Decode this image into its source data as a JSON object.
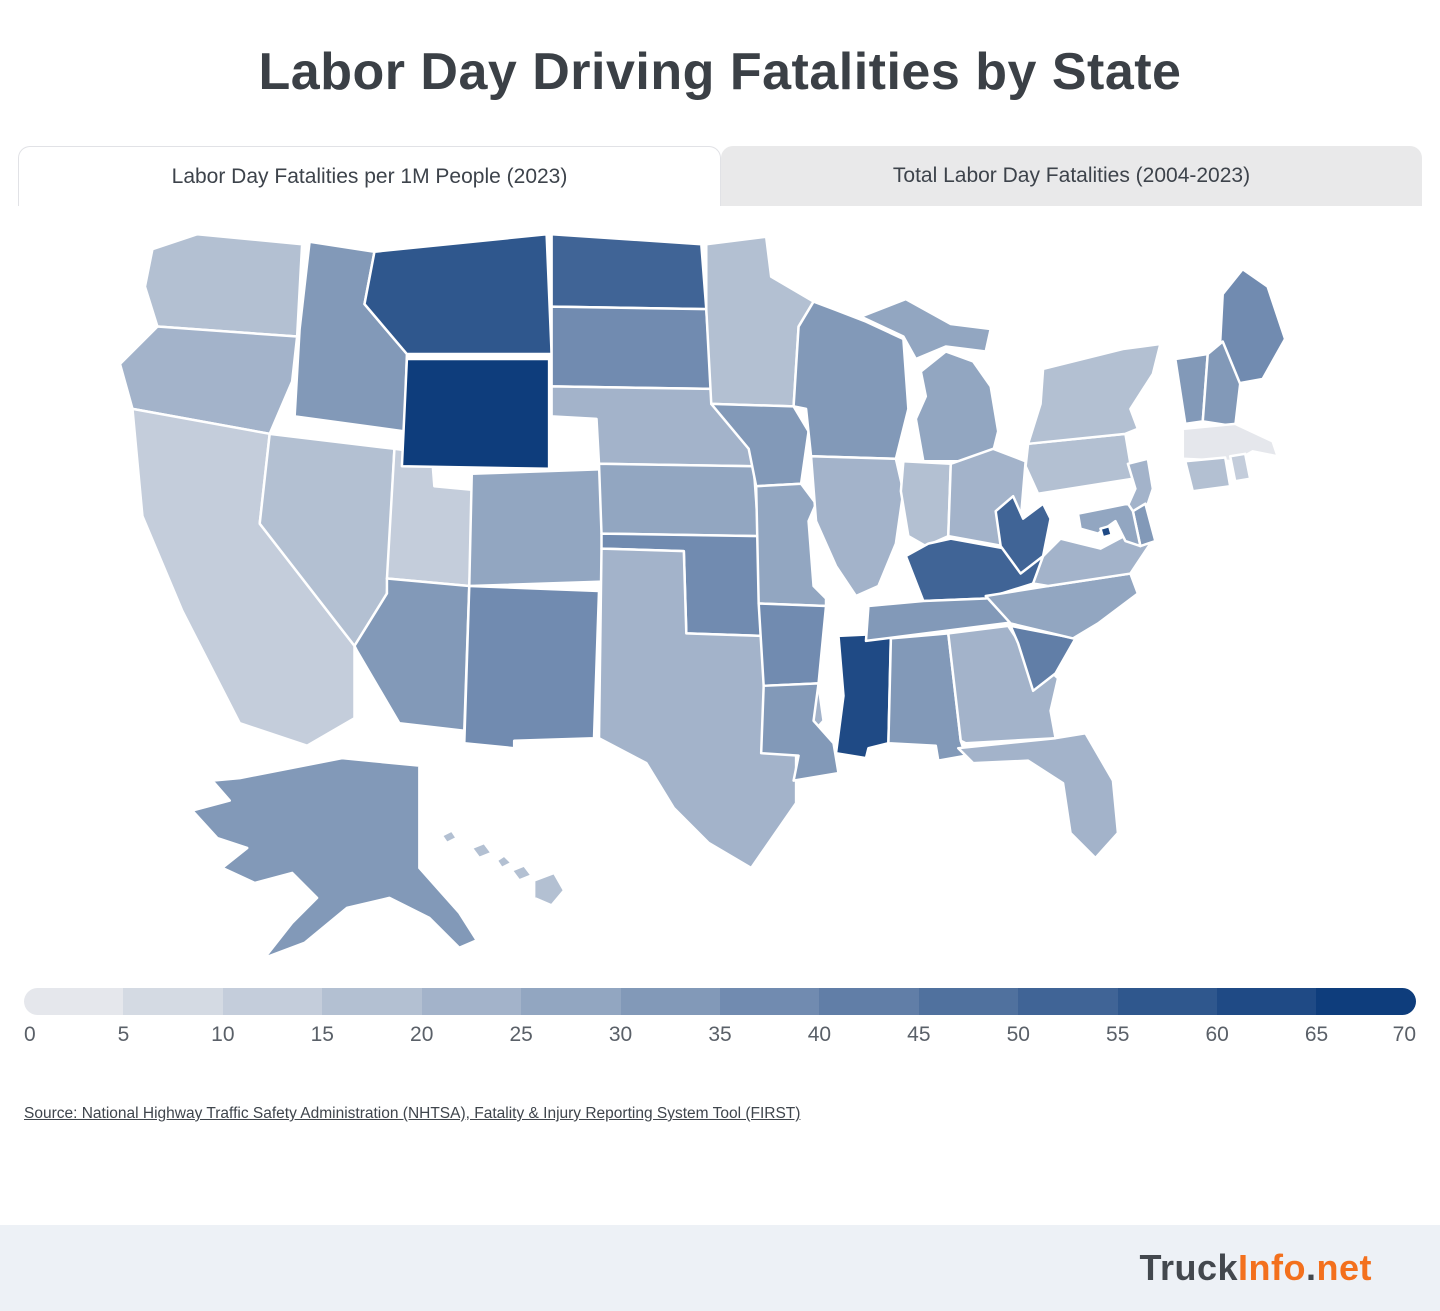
{
  "title": "Labor Day Driving Fatalities by State",
  "tabs": [
    {
      "label": "Labor Day Fatalities per 1M People (2023)",
      "active": true
    },
    {
      "label": "Total Labor Day Fatalities (2004-2023)",
      "active": false
    }
  ],
  "legend": {
    "min": 0,
    "max": 70,
    "step": 5,
    "segments": 14,
    "ticks": [
      "0",
      "5",
      "10",
      "15",
      "20",
      "25",
      "30",
      "35",
      "40",
      "45",
      "50",
      "55",
      "60",
      "65",
      "70"
    ]
  },
  "colorscale": {
    "start": "#e5e7ec",
    "end": "#0e3d7c",
    "steps": 14
  },
  "source": {
    "label": "Source: National Highway Traffic Safety Administration (NHTSA), Fatality & Injury Reporting System Tool (FIRST)"
  },
  "footer": {
    "brand_dark1": "Truck",
    "brand_orange1": "Info",
    "brand_dark2": ".",
    "brand_orange2": "net"
  },
  "chart_data": {
    "type": "choropleth",
    "title": "Labor Day Fatalities per 1M People (2023)",
    "unit": "fatalities per 1M people",
    "region": "United States",
    "value_range": [
      0,
      70
    ],
    "legend_position": "bottom",
    "states": [
      {
        "code": "AL",
        "name": "Alabama",
        "value": 32
      },
      {
        "code": "AK",
        "name": "Alaska",
        "value": 34
      },
      {
        "code": "AZ",
        "name": "Arizona",
        "value": 31
      },
      {
        "code": "AR",
        "name": "Arkansas",
        "value": 36
      },
      {
        "code": "CA",
        "name": "California",
        "value": 14
      },
      {
        "code": "CO",
        "name": "Colorado",
        "value": 25
      },
      {
        "code": "CT",
        "name": "Connecticut",
        "value": 17
      },
      {
        "code": "DE",
        "name": "Delaware",
        "value": 30
      },
      {
        "code": "DC",
        "name": "District of Columbia",
        "value": 60
      },
      {
        "code": "FL",
        "name": "Florida",
        "value": 23
      },
      {
        "code": "GA",
        "name": "Georgia",
        "value": 24
      },
      {
        "code": "HI",
        "name": "Hawaii",
        "value": 18
      },
      {
        "code": "ID",
        "name": "Idaho",
        "value": 33
      },
      {
        "code": "IL",
        "name": "Illinois",
        "value": 24
      },
      {
        "code": "IN",
        "name": "Indiana",
        "value": 18
      },
      {
        "code": "IA",
        "name": "Iowa",
        "value": 33
      },
      {
        "code": "KS",
        "name": "Kansas",
        "value": 28
      },
      {
        "code": "KY",
        "name": "Kentucky",
        "value": 50
      },
      {
        "code": "LA",
        "name": "Louisiana",
        "value": 32
      },
      {
        "code": "ME",
        "name": "Maine",
        "value": 36
      },
      {
        "code": "MD",
        "name": "Maryland",
        "value": 27
      },
      {
        "code": "MA",
        "name": "Massachusetts",
        "value": 4
      },
      {
        "code": "MI",
        "name": "Michigan",
        "value": 29
      },
      {
        "code": "MN",
        "name": "Minnesota",
        "value": 15
      },
      {
        "code": "MS",
        "name": "Mississippi",
        "value": 60
      },
      {
        "code": "MO",
        "name": "Missouri",
        "value": 29
      },
      {
        "code": "MT",
        "name": "Montana",
        "value": 57
      },
      {
        "code": "NE",
        "name": "Nebraska",
        "value": 21
      },
      {
        "code": "NV",
        "name": "Nevada",
        "value": 16
      },
      {
        "code": "NH",
        "name": "New Hampshire",
        "value": 33
      },
      {
        "code": "NJ",
        "name": "New Jersey",
        "value": 21
      },
      {
        "code": "NM",
        "name": "New Mexico",
        "value": 35
      },
      {
        "code": "NY",
        "name": "New York",
        "value": 15
      },
      {
        "code": "NC",
        "name": "North Carolina",
        "value": 28
      },
      {
        "code": "ND",
        "name": "North Dakota",
        "value": 50
      },
      {
        "code": "OH",
        "name": "Ohio",
        "value": 23
      },
      {
        "code": "OK",
        "name": "Oklahoma",
        "value": 36
      },
      {
        "code": "OR",
        "name": "Oregon",
        "value": 23
      },
      {
        "code": "PA",
        "name": "Pennsylvania",
        "value": 19
      },
      {
        "code": "RI",
        "name": "Rhode Island",
        "value": 10
      },
      {
        "code": "SC",
        "name": "South Carolina",
        "value": 40
      },
      {
        "code": "SD",
        "name": "South Dakota",
        "value": 36
      },
      {
        "code": "TN",
        "name": "Tennessee",
        "value": 30
      },
      {
        "code": "TX",
        "name": "Texas",
        "value": 21
      },
      {
        "code": "UT",
        "name": "Utah",
        "value": 14
      },
      {
        "code": "VT",
        "name": "Vermont",
        "value": 34
      },
      {
        "code": "VA",
        "name": "Virginia",
        "value": 24
      },
      {
        "code": "WA",
        "name": "Washington",
        "value": 16
      },
      {
        "code": "WV",
        "name": "West Virginia",
        "value": 50
      },
      {
        "code": "WI",
        "name": "Wisconsin",
        "value": 32
      },
      {
        "code": "WY",
        "name": "Wyoming",
        "value": 69
      }
    ]
  }
}
